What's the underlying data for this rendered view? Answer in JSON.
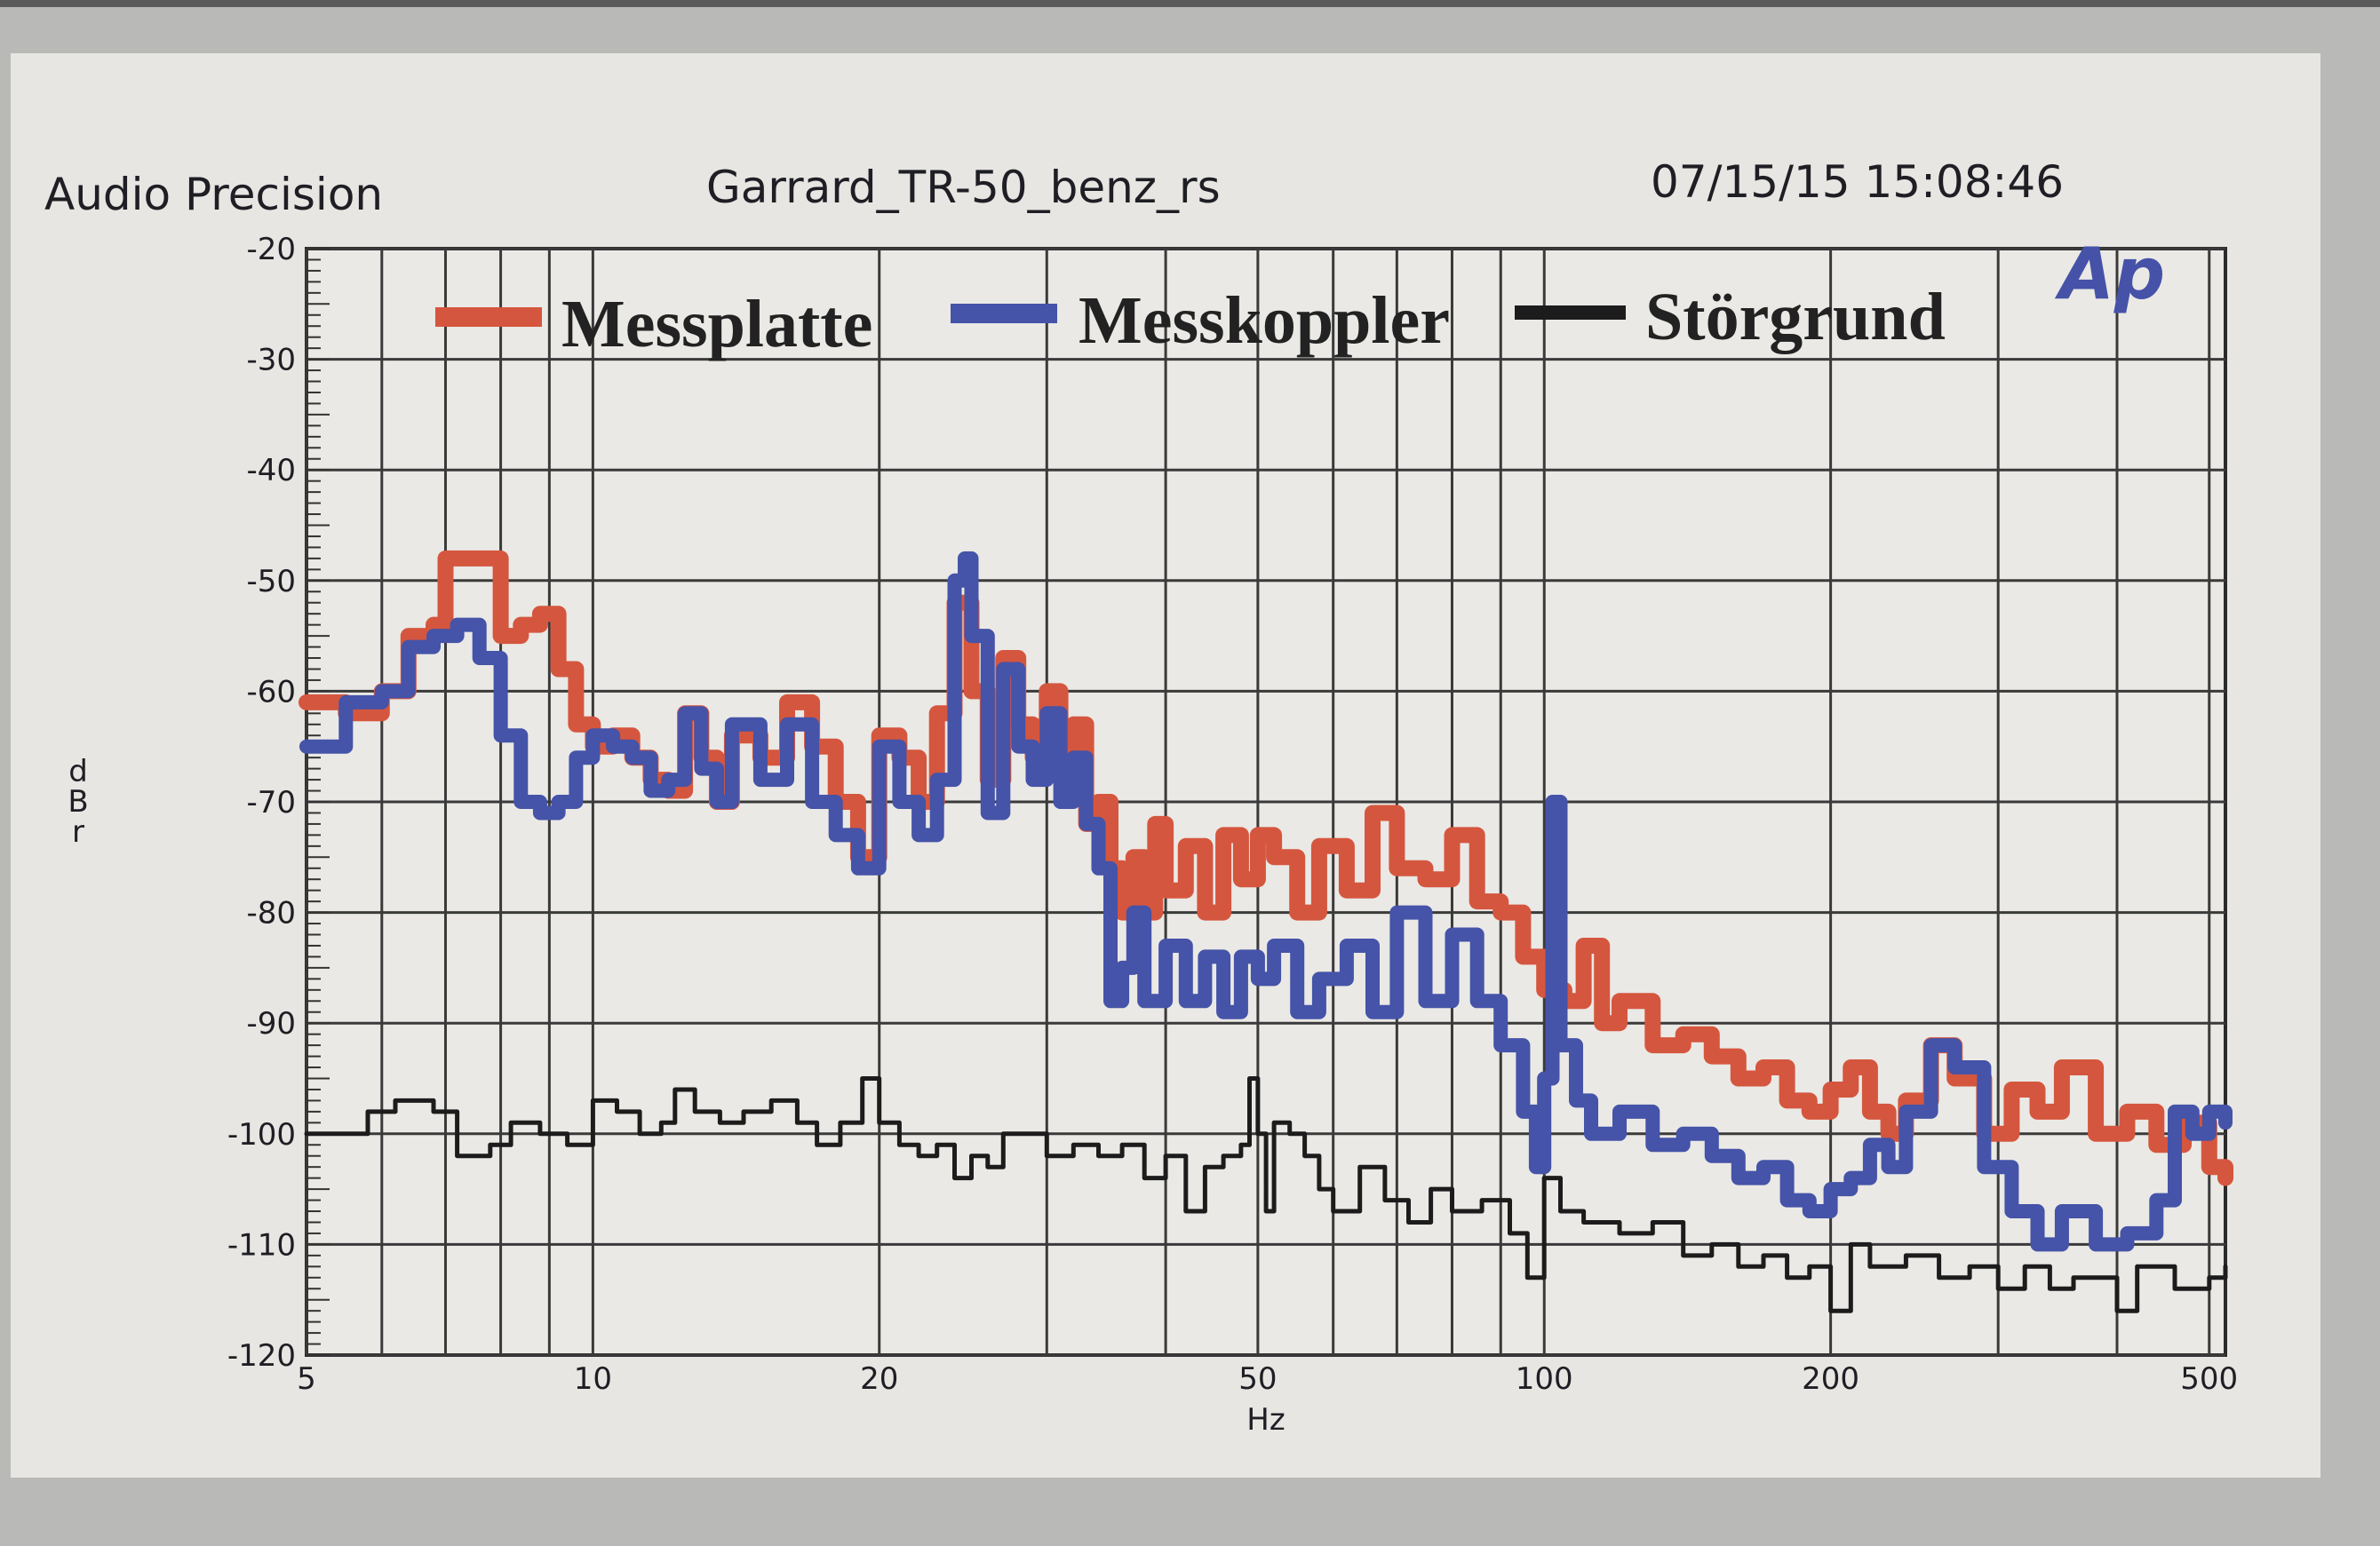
{
  "header": {
    "brand": "Audio Precision",
    "filename": "Garrard_TR-50_benz_rs",
    "timestamp": "07/15/15 15:08:46",
    "logo_text": "Ap"
  },
  "colors": {
    "messplatte": "#d5563e",
    "messkoppler": "#4553a8",
    "stoergrund": "#1c1c1c",
    "grid": "#3a3a3a",
    "panel": "#e7e6e2",
    "logo": "#4552a8"
  },
  "chart_data": {
    "type": "line",
    "title": "",
    "xlabel": "Hz",
    "ylabel": "dBr",
    "x_scale": "log",
    "xlim": [
      5,
      520
    ],
    "ylim": [
      -120,
      -20
    ],
    "x_ticks": [
      5,
      10,
      20,
      50,
      100,
      200,
      500
    ],
    "x_tick_labels": [
      "5",
      "10",
      "20",
      "50",
      "100",
      "200",
      "500"
    ],
    "y_ticks": [
      -20,
      -30,
      -40,
      -50,
      -60,
      -70,
      -80,
      -90,
      -100,
      -110,
      -120
    ],
    "y_tick_labels": [
      "-20",
      "-30",
      "-40",
      "-50",
      "-60",
      "-70",
      "-80",
      "-90",
      "-100",
      "-110",
      "-120"
    ],
    "grid": true,
    "legend_position": "top",
    "series": [
      {
        "name": "Messplatte",
        "color": "#d5563e",
        "points": [
          [
            5,
            -61
          ],
          [
            5.5,
            -62
          ],
          [
            6,
            -60
          ],
          [
            6.4,
            -55
          ],
          [
            6.8,
            -54
          ],
          [
            7,
            -48
          ],
          [
            7.6,
            -48
          ],
          [
            8,
            -55
          ],
          [
            8.4,
            -54
          ],
          [
            8.8,
            -53
          ],
          [
            9.2,
            -58
          ],
          [
            9.6,
            -63
          ],
          [
            10,
            -65
          ],
          [
            10.5,
            -64
          ],
          [
            11,
            -66
          ],
          [
            11.5,
            -68
          ],
          [
            12,
            -69
          ],
          [
            12.5,
            -62
          ],
          [
            13,
            -66
          ],
          [
            13.5,
            -70
          ],
          [
            14,
            -64
          ],
          [
            15,
            -66
          ],
          [
            16,
            -61
          ],
          [
            17,
            -65
          ],
          [
            18,
            -70
          ],
          [
            19,
            -75
          ],
          [
            20,
            -64
          ],
          [
            21,
            -66
          ],
          [
            22,
            -70
          ],
          [
            23,
            -62
          ],
          [
            24,
            -52
          ],
          [
            25,
            -60
          ],
          [
            26,
            -68
          ],
          [
            27,
            -57
          ],
          [
            28,
            -63
          ],
          [
            29,
            -66
          ],
          [
            30,
            -60
          ],
          [
            31,
            -68
          ],
          [
            32,
            -63
          ],
          [
            33,
            -72
          ],
          [
            34,
            -70
          ],
          [
            35,
            -76
          ],
          [
            36,
            -80
          ],
          [
            37,
            -75
          ],
          [
            38,
            -80
          ],
          [
            39,
            -72
          ],
          [
            40,
            -78
          ],
          [
            42,
            -74
          ],
          [
            44,
            -80
          ],
          [
            46,
            -73
          ],
          [
            48,
            -77
          ],
          [
            50,
            -73
          ],
          [
            52,
            -75
          ],
          [
            55,
            -80
          ],
          [
            58,
            -74
          ],
          [
            62,
            -78
          ],
          [
            66,
            -71
          ],
          [
            70,
            -76
          ],
          [
            75,
            -77
          ],
          [
            80,
            -73
          ],
          [
            85,
            -79
          ],
          [
            90,
            -80
          ],
          [
            95,
            -84
          ],
          [
            100,
            -87
          ],
          [
            105,
            -88
          ],
          [
            110,
            -83
          ],
          [
            115,
            -90
          ],
          [
            120,
            -88
          ],
          [
            130,
            -92
          ],
          [
            140,
            -91
          ],
          [
            150,
            -93
          ],
          [
            160,
            -95
          ],
          [
            170,
            -94
          ],
          [
            180,
            -97
          ],
          [
            190,
            -98
          ],
          [
            200,
            -96
          ],
          [
            210,
            -94
          ],
          [
            220,
            -98
          ],
          [
            230,
            -100
          ],
          [
            240,
            -97
          ],
          [
            255,
            -92
          ],
          [
            270,
            -95
          ],
          [
            290,
            -100
          ],
          [
            310,
            -96
          ],
          [
            330,
            -98
          ],
          [
            350,
            -94
          ],
          [
            380,
            -100
          ],
          [
            410,
            -98
          ],
          [
            440,
            -101
          ],
          [
            470,
            -99
          ],
          [
            500,
            -103
          ],
          [
            520,
            -104
          ]
        ]
      },
      {
        "name": "Messkoppler",
        "color": "#4553a8",
        "points": [
          [
            5,
            -65
          ],
          [
            5.5,
            -61
          ],
          [
            6,
            -60
          ],
          [
            6.4,
            -56
          ],
          [
            6.8,
            -55
          ],
          [
            7.2,
            -54
          ],
          [
            7.6,
            -57
          ],
          [
            8,
            -64
          ],
          [
            8.4,
            -70
          ],
          [
            8.8,
            -71
          ],
          [
            9.2,
            -70
          ],
          [
            9.6,
            -66
          ],
          [
            10,
            -64
          ],
          [
            10.5,
            -65
          ],
          [
            11,
            -66
          ],
          [
            11.5,
            -69
          ],
          [
            12,
            -68
          ],
          [
            12.5,
            -62
          ],
          [
            13,
            -67
          ],
          [
            13.5,
            -70
          ],
          [
            14,
            -63
          ],
          [
            15,
            -68
          ],
          [
            16,
            -63
          ],
          [
            17,
            -70
          ],
          [
            18,
            -73
          ],
          [
            19,
            -76
          ],
          [
            20,
            -65
          ],
          [
            21,
            -70
          ],
          [
            22,
            -73
          ],
          [
            23,
            -68
          ],
          [
            24,
            -50
          ],
          [
            24.6,
            -48
          ],
          [
            25,
            -55
          ],
          [
            26,
            -71
          ],
          [
            27,
            -58
          ],
          [
            28,
            -65
          ],
          [
            29,
            -68
          ],
          [
            30,
            -62
          ],
          [
            31,
            -70
          ],
          [
            32,
            -66
          ],
          [
            33,
            -72
          ],
          [
            34,
            -76
          ],
          [
            35,
            -88
          ],
          [
            36,
            -85
          ],
          [
            37,
            -80
          ],
          [
            38,
            -88
          ],
          [
            40,
            -83
          ],
          [
            42,
            -88
          ],
          [
            44,
            -84
          ],
          [
            46,
            -89
          ],
          [
            48,
            -84
          ],
          [
            50,
            -86
          ],
          [
            52,
            -83
          ],
          [
            55,
            -89
          ],
          [
            58,
            -86
          ],
          [
            62,
            -83
          ],
          [
            66,
            -89
          ],
          [
            70,
            -80
          ],
          [
            75,
            -88
          ],
          [
            80,
            -82
          ],
          [
            85,
            -88
          ],
          [
            90,
            -92
          ],
          [
            95,
            -98
          ],
          [
            98,
            -103
          ],
          [
            100,
            -95
          ],
          [
            102,
            -70
          ],
          [
            104,
            -92
          ],
          [
            108,
            -97
          ],
          [
            112,
            -100
          ],
          [
            120,
            -98
          ],
          [
            130,
            -101
          ],
          [
            140,
            -100
          ],
          [
            150,
            -102
          ],
          [
            160,
            -104
          ],
          [
            170,
            -103
          ],
          [
            180,
            -106
          ],
          [
            190,
            -107
          ],
          [
            200,
            -105
          ],
          [
            210,
            -104
          ],
          [
            220,
            -101
          ],
          [
            230,
            -103
          ],
          [
            240,
            -98
          ],
          [
            255,
            -92
          ],
          [
            270,
            -94
          ],
          [
            290,
            -103
          ],
          [
            310,
            -107
          ],
          [
            330,
            -110
          ],
          [
            350,
            -107
          ],
          [
            380,
            -110
          ],
          [
            410,
            -109
          ],
          [
            440,
            -106
          ],
          [
            460,
            -98
          ],
          [
            480,
            -100
          ],
          [
            500,
            -98
          ],
          [
            520,
            -99
          ]
        ]
      },
      {
        "name": "Störgrund",
        "color": "#1c1c1c",
        "points": [
          [
            5,
            -100
          ],
          [
            5.6,
            -100
          ],
          [
            5.8,
            -98
          ],
          [
            6.2,
            -97
          ],
          [
            6.8,
            -98
          ],
          [
            7.2,
            -102
          ],
          [
            7.8,
            -101
          ],
          [
            8.2,
            -99
          ],
          [
            8.8,
            -100
          ],
          [
            9.4,
            -101
          ],
          [
            10,
            -97
          ],
          [
            10.6,
            -98
          ],
          [
            11.2,
            -100
          ],
          [
            11.8,
            -99
          ],
          [
            12.2,
            -96
          ],
          [
            12.8,
            -98
          ],
          [
            13.6,
            -99
          ],
          [
            14.4,
            -98
          ],
          [
            15.4,
            -97
          ],
          [
            16.4,
            -99
          ],
          [
            17.2,
            -101
          ],
          [
            18.2,
            -99
          ],
          [
            19.2,
            -95
          ],
          [
            20,
            -99
          ],
          [
            21,
            -101
          ],
          [
            22,
            -102
          ],
          [
            23,
            -101
          ],
          [
            24,
            -104
          ],
          [
            25,
            -102
          ],
          [
            26,
            -103
          ],
          [
            27,
            -100
          ],
          [
            28,
            -100
          ],
          [
            30,
            -102
          ],
          [
            32,
            -101
          ],
          [
            34,
            -102
          ],
          [
            36,
            -101
          ],
          [
            38,
            -104
          ],
          [
            40,
            -102
          ],
          [
            42,
            -107
          ],
          [
            44,
            -103
          ],
          [
            46,
            -102
          ],
          [
            48,
            -101
          ],
          [
            49,
            -95
          ],
          [
            50,
            -100
          ],
          [
            51,
            -107
          ],
          [
            52,
            -99
          ],
          [
            54,
            -100
          ],
          [
            56,
            -102
          ],
          [
            58,
            -105
          ],
          [
            60,
            -107
          ],
          [
            64,
            -103
          ],
          [
            68,
            -106
          ],
          [
            72,
            -108
          ],
          [
            76,
            -105
          ],
          [
            80,
            -107
          ],
          [
            86,
            -106
          ],
          [
            92,
            -109
          ],
          [
            96,
            -113
          ],
          [
            100,
            -104
          ],
          [
            104,
            -107
          ],
          [
            110,
            -108
          ],
          [
            120,
            -109
          ],
          [
            130,
            -108
          ],
          [
            140,
            -111
          ],
          [
            150,
            -110
          ],
          [
            160,
            -112
          ],
          [
            170,
            -111
          ],
          [
            180,
            -113
          ],
          [
            190,
            -112
          ],
          [
            200,
            -116
          ],
          [
            210,
            -110
          ],
          [
            220,
            -112
          ],
          [
            240,
            -111
          ],
          [
            260,
            -113
          ],
          [
            280,
            -112
          ],
          [
            300,
            -114
          ],
          [
            320,
            -112
          ],
          [
            340,
            -114
          ],
          [
            360,
            -113
          ],
          [
            400,
            -116
          ],
          [
            420,
            -112
          ],
          [
            460,
            -114
          ],
          [
            500,
            -113
          ],
          [
            520,
            -112
          ]
        ]
      }
    ]
  }
}
